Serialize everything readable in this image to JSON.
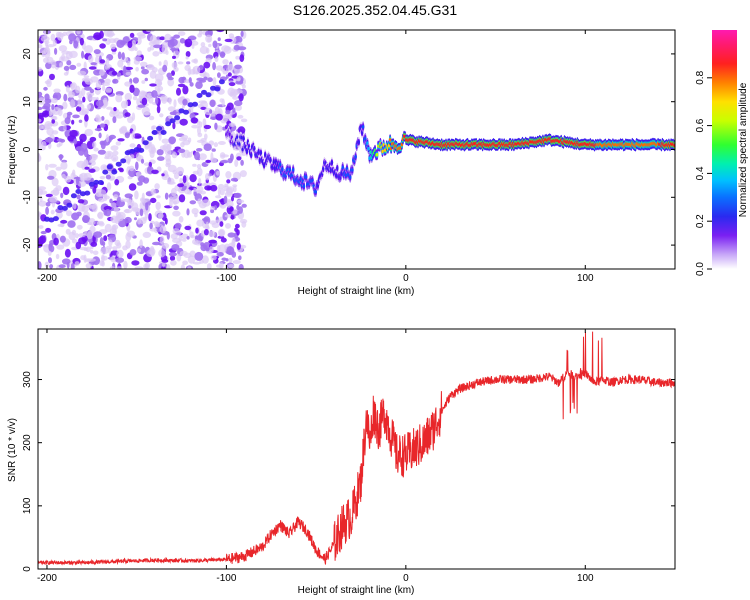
{
  "title": "S126.2025.352.04.45.G31",
  "colors": {
    "axis": "#000000",
    "snr_line": "#e8262a",
    "spectrogram_scale": [
      "#ffffff",
      "#dcc9f5",
      "#a070f0",
      "#6a10f2",
      "#3b1bf0",
      "#1050ff",
      "#00b0ff",
      "#00e8c0",
      "#40ff40",
      "#c8ff00",
      "#ffd000",
      "#ff6a00",
      "#ff1a1a",
      "#ff1ab0"
    ]
  },
  "chart_data": [
    {
      "type": "heatmap",
      "title": "",
      "xlabel": "Height of straight line (km)",
      "ylabel": "Frequency (Hz)",
      "xlim": [
        -205,
        150
      ],
      "ylim": [
        -25,
        25
      ],
      "xticks": [
        -200,
        -100,
        0,
        100
      ],
      "xtick_labels": [
        "-200",
        "-100",
        "0",
        "100"
      ],
      "yticks": [
        20,
        10,
        0,
        -10,
        -20
      ],
      "ytick_labels": [
        "20",
        "10",
        "0",
        "-10",
        "-20"
      ],
      "ridge": {
        "description_values": "frequency of the dominant spectral component (Hz) vs height (km)",
        "x": [
          -100,
          -90,
          -80,
          -70,
          -60,
          -50,
          -45,
          -40,
          -35,
          -30,
          -25,
          -20,
          -15,
          -10,
          -5,
          0,
          20,
          40,
          60,
          80,
          100,
          120,
          150
        ],
        "y": [
          3,
          1,
          -2,
          -4,
          -6,
          -8,
          -3,
          -4,
          -5,
          -5,
          5,
          -1,
          0,
          1,
          1,
          2,
          1,
          1,
          1,
          2,
          1,
          1,
          1
        ],
        "amplitude": [
          0.25,
          0.3,
          0.3,
          0.35,
          0.4,
          0.35,
          0.3,
          0.3,
          0.35,
          0.4,
          0.3,
          0.5,
          0.7,
          0.8,
          0.85,
          0.9,
          0.9,
          0.9,
          0.95,
          0.95,
          0.9,
          0.85,
          0.9
        ]
      },
      "noise_region": [
        -205,
        -100
      ]
    },
    {
      "type": "colorbar",
      "label": "Normalized spectral amplitude",
      "range": [
        0.0,
        1.0
      ],
      "ticks": [
        0.0,
        0.2,
        0.4,
        0.6,
        0.8
      ],
      "tick_labels": [
        "0.0",
        "0.2",
        "0.4",
        "0.6",
        "0.8"
      ]
    },
    {
      "type": "line",
      "title": "",
      "xlabel": "Height of straight line (km)",
      "ylabel": "SNR (10 * v/v)",
      "xlim": [
        -205,
        150
      ],
      "ylim": [
        0,
        380
      ],
      "xticks": [
        -200,
        -100,
        0,
        100
      ],
      "xtick_labels": [
        "-200",
        "-100",
        "0",
        "100"
      ],
      "yticks": [
        0,
        100,
        200,
        300
      ],
      "ytick_labels": [
        "0",
        "100",
        "200",
        "300"
      ],
      "series": [
        {
          "name": "SNR",
          "x": [
            -205,
            -180,
            -160,
            -140,
            -120,
            -100,
            -90,
            -80,
            -75,
            -70,
            -65,
            -60,
            -55,
            -50,
            -45,
            -40,
            -35,
            -30,
            -25,
            -22,
            -20,
            -18,
            -15,
            -12,
            -10,
            -5,
            0,
            5,
            10,
            15,
            20,
            25,
            30,
            40,
            50,
            60,
            70,
            80,
            85,
            90,
            95,
            100,
            105,
            110,
            115,
            120,
            130,
            140,
            150
          ],
          "y": [
            10,
            10,
            12,
            14,
            13,
            15,
            20,
            35,
            55,
            70,
            55,
            75,
            60,
            30,
            15,
            40,
            70,
            85,
            140,
            240,
            200,
            250,
            220,
            250,
            230,
            180,
            180,
            190,
            200,
            220,
            250,
            275,
            285,
            295,
            300,
            300,
            300,
            305,
            295,
            310,
            305,
            310,
            295,
            300,
            295,
            300,
            300,
            295,
            295
          ]
        }
      ]
    }
  ]
}
